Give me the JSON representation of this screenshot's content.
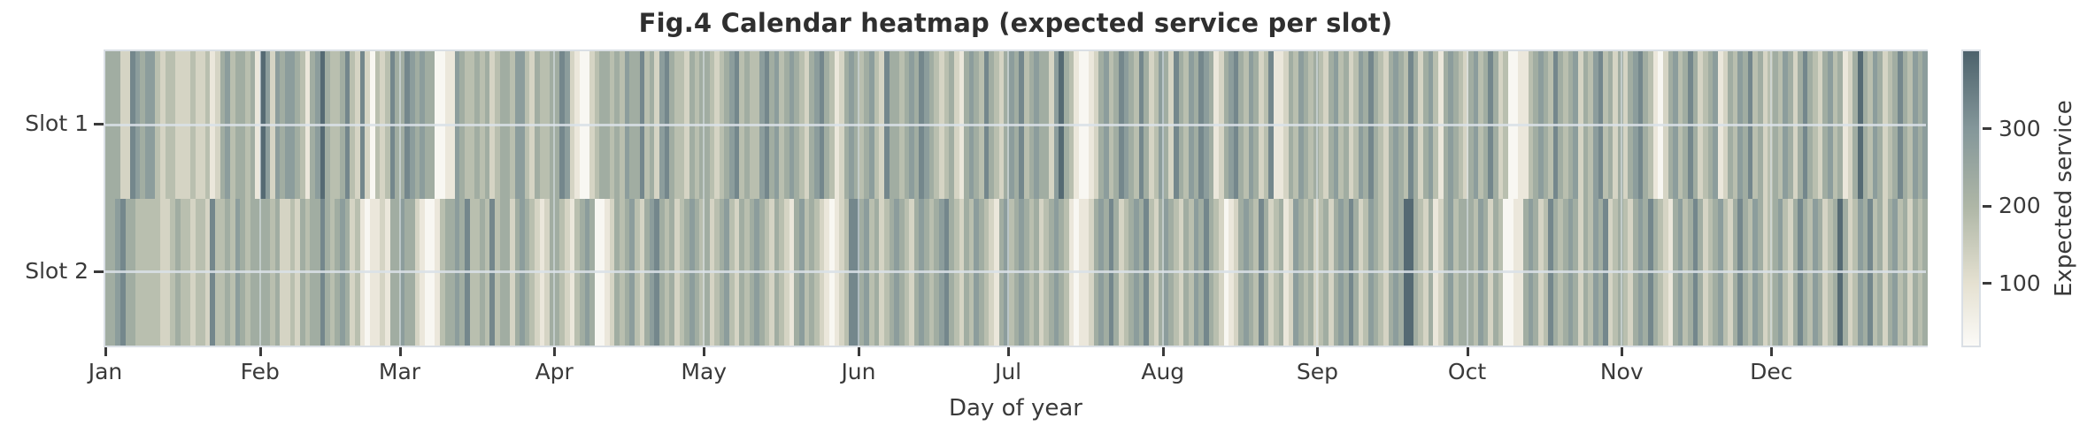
{
  "title": "Fig.4 Calendar heatmap (expected service per slot)",
  "colors": {
    "background": "#ffffff",
    "title_text": "#2f2f2f",
    "label_text": "#3a3a3a",
    "tick_mark": "#3a3a3a",
    "plot_border": "#dadfe5",
    "gridline": "#d9e0e8"
  },
  "chart_data": {
    "type": "heatmap",
    "title": "Fig.4 Calendar heatmap (expected service per slot)",
    "xlabel": "Day of year",
    "ylabel": "",
    "rows": [
      "Slot 1",
      "Slot 2"
    ],
    "x_tick_labels": [
      "Jan",
      "Feb",
      "Mar",
      "Apr",
      "May",
      "Jun",
      "Jul",
      "Aug",
      "Sep",
      "Oct",
      "Nov",
      "Dec"
    ],
    "month_lengths": [
      31,
      28,
      31,
      30,
      31,
      30,
      31,
      31,
      30,
      31,
      30,
      31
    ],
    "days_per_year": 365,
    "grid": true,
    "colorbar": {
      "label": "Expected service",
      "tick_values": [
        100,
        200,
        300
      ],
      "vmin": 20,
      "vmax": 400,
      "gradient_stops": [
        {
          "value": 20,
          "color": "#fbfaf7"
        },
        {
          "value": 100,
          "color": "#e5e1d1"
        },
        {
          "value": 200,
          "color": "#aeb6a6"
        },
        {
          "value": 300,
          "color": "#84979a"
        },
        {
          "value": 400,
          "color": "#4d626c"
        }
      ]
    },
    "level_values": [
      30,
      80,
      130,
      180,
      230,
      280,
      330,
      385
    ],
    "slot1_levels_by_month": [
      "4442265455323322232231245344341",
      "7525455431457433463262032364",
      "4654544001154334342344355324334",
      "465210023443435446342564332434",
      "4323456343356453454324564312454",
      "345326443454654323421454364324",
      "5463454425743100124534654364235",
      "4264354654124564354236112435434",
      "324534235464324543642453145432",
      "4534642300113454364345243563424",
      "245643102453464234512435463423",
      "4354246432453412474354234643545"
    ],
    "slot2_levels_by_month": [
      "4456443333322343323326334354344",
      "4434223243446434542310112144",
      "5442100134454633436344245432124",
      "432134540012434532456434234543",
      "4234532434543243214534321012366",
      "453423454324543456432435432145",
      "3454342345431011245464234546324",
      "5432435464320124543642341254342",
      "342454642354324547743241245344",
      "4354243001145423643454243546234",
      "324546432145346423453246435423",
      "4532464354234742354634245342434"
    ]
  }
}
